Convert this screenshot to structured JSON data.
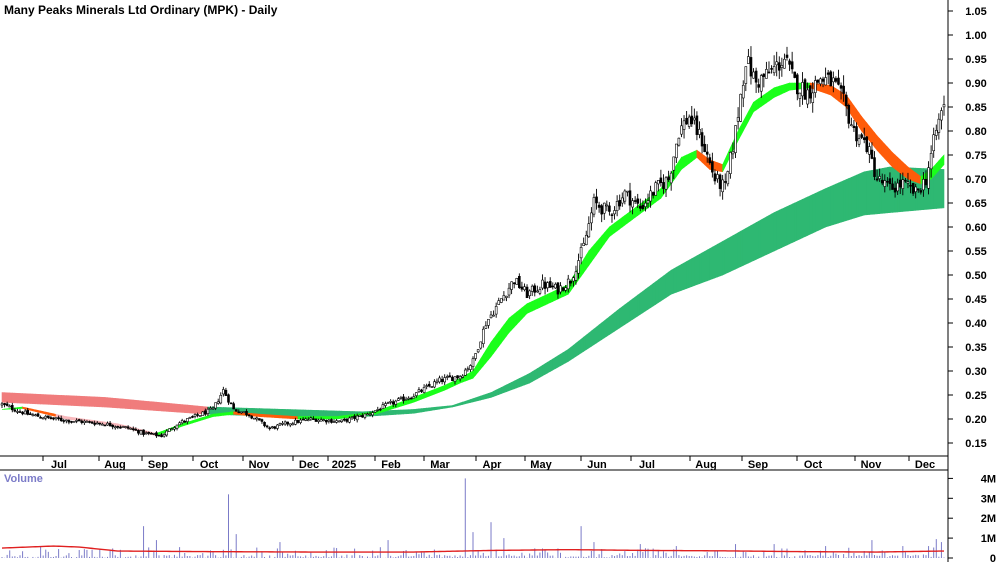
{
  "chart_data": [
    {
      "type": "candlestick",
      "title": "Many Peaks Minerals Ltd Ordinary (MPK) - Daily",
      "ylabel": "",
      "y_ticks": [
        "0.15",
        "0.20",
        "0.25",
        "0.30",
        "0.35",
        "0.40",
        "0.45",
        "0.50",
        "0.55",
        "0.60",
        "0.65",
        "0.70",
        "0.75",
        "0.80",
        "0.85",
        "0.90",
        "0.95",
        "1.00",
        "1.05"
      ],
      "ylim": [
        0.1,
        1.08
      ],
      "x_labels": [
        "Jul",
        "Aug",
        "Sep",
        "Oct",
        "Nov",
        "Dec",
        "2025",
        "Feb",
        "Mar",
        "Apr",
        "May",
        "Jun",
        "Jul",
        "Aug",
        "Sep",
        "Oct",
        "Nov",
        "Dec"
      ],
      "legend": "none",
      "grid": false,
      "colors": {
        "candle": "#000000",
        "short_band_up": "#1aff1a",
        "short_band_down": "#ff5c0a",
        "long_band_up": "#2eb872",
        "long_band_down": "#f07c7c",
        "long_band_down_light": "#f8b8bc",
        "axis": "#000000",
        "volume_bar": "#7b7bc8",
        "volume_avg": "#e02020"
      },
      "close_anchors": [
        [
          0,
          0.23
        ],
        [
          10,
          0.21
        ],
        [
          20,
          0.2
        ],
        [
          30,
          0.195
        ],
        [
          40,
          0.19
        ],
        [
          50,
          0.18
        ],
        [
          55,
          0.17
        ],
        [
          62,
          0.165
        ],
        [
          68,
          0.19
        ],
        [
          75,
          0.205
        ],
        [
          82,
          0.22
        ],
        [
          86,
          0.26
        ],
        [
          90,
          0.22
        ],
        [
          96,
          0.21
        ],
        [
          104,
          0.18
        ],
        [
          110,
          0.19
        ],
        [
          120,
          0.2
        ],
        [
          132,
          0.195
        ],
        [
          142,
          0.21
        ],
        [
          150,
          0.23
        ],
        [
          160,
          0.25
        ],
        [
          170,
          0.28
        ],
        [
          178,
          0.29
        ],
        [
          183,
          0.32
        ],
        [
          188,
          0.4
        ],
        [
          194,
          0.45
        ],
        [
          199,
          0.49
        ],
        [
          204,
          0.46
        ],
        [
          210,
          0.48
        ],
        [
          216,
          0.47
        ],
        [
          221,
          0.49
        ],
        [
          226,
          0.56
        ],
        [
          230,
          0.65
        ],
        [
          236,
          0.63
        ],
        [
          242,
          0.67
        ],
        [
          248,
          0.64
        ],
        [
          254,
          0.68
        ],
        [
          259,
          0.7
        ],
        [
          263,
          0.8
        ],
        [
          267,
          0.83
        ],
        [
          272,
          0.78
        ],
        [
          277,
          0.7
        ],
        [
          281,
          0.68
        ],
        [
          285,
          0.8
        ],
        [
          289,
          0.95
        ],
        [
          293,
          0.9
        ],
        [
          298,
          0.92
        ],
        [
          304,
          0.95
        ],
        [
          308,
          0.9
        ],
        [
          313,
          0.88
        ],
        [
          318,
          0.91
        ],
        [
          323,
          0.9
        ],
        [
          327,
          0.86
        ],
        [
          331,
          0.8
        ],
        [
          336,
          0.77
        ],
        [
          340,
          0.7
        ],
        [
          345,
          0.68
        ],
        [
          350,
          0.69
        ],
        [
          355,
          0.67
        ],
        [
          359,
          0.7
        ],
        [
          363,
          0.8
        ],
        [
          366,
          0.86
        ]
      ],
      "short_band_anchors": [
        [
          0,
          0.22,
          0.22
        ],
        [
          8,
          0.225,
          0.222
        ],
        [
          25,
          0.205,
          0.2
        ],
        [
          45,
          0.19,
          0.185
        ],
        [
          60,
          0.17,
          0.165
        ],
        [
          70,
          0.19,
          0.185
        ],
        [
          82,
          0.21,
          0.205
        ],
        [
          90,
          0.215,
          0.21
        ],
        [
          100,
          0.21,
          0.205
        ],
        [
          115,
          0.205,
          0.2
        ],
        [
          130,
          0.205,
          0.2
        ],
        [
          145,
          0.215,
          0.21
        ],
        [
          160,
          0.245,
          0.235
        ],
        [
          172,
          0.27,
          0.26
        ],
        [
          178,
          0.285,
          0.275
        ],
        [
          183,
          0.3,
          0.285
        ],
        [
          190,
          0.36,
          0.33
        ],
        [
          197,
          0.41,
          0.38
        ],
        [
          204,
          0.44,
          0.42
        ],
        [
          212,
          0.46,
          0.44
        ],
        [
          220,
          0.48,
          0.46
        ],
        [
          228,
          0.55,
          0.52
        ],
        [
          236,
          0.6,
          0.58
        ],
        [
          246,
          0.64,
          0.62
        ],
        [
          256,
          0.68,
          0.66
        ],
        [
          264,
          0.745,
          0.72
        ],
        [
          270,
          0.76,
          0.745
        ],
        [
          275,
          0.74,
          0.72
        ],
        [
          280,
          0.73,
          0.715
        ],
        [
          286,
          0.8,
          0.78
        ],
        [
          292,
          0.86,
          0.84
        ],
        [
          300,
          0.89,
          0.87
        ],
        [
          306,
          0.9,
          0.885
        ],
        [
          314,
          0.9,
          0.89
        ],
        [
          322,
          0.895,
          0.875
        ],
        [
          328,
          0.875,
          0.85
        ],
        [
          334,
          0.83,
          0.8
        ],
        [
          340,
          0.79,
          0.76
        ],
        [
          346,
          0.755,
          0.725
        ],
        [
          352,
          0.725,
          0.7
        ],
        [
          357,
          0.705,
          0.69
        ],
        [
          361,
          0.72,
          0.7
        ],
        [
          366,
          0.75,
          0.73
        ]
      ],
      "long_band_anchors": [
        [
          0,
          0.255,
          0.235
        ],
        [
          40,
          0.245,
          0.225
        ],
        [
          80,
          0.225,
          0.21
        ],
        [
          110,
          0.22,
          0.205
        ],
        [
          140,
          0.215,
          0.205
        ],
        [
          160,
          0.22,
          0.212
        ],
        [
          175,
          0.228,
          0.225
        ],
        [
          190,
          0.255,
          0.245
        ],
        [
          205,
          0.295,
          0.275
        ],
        [
          220,
          0.345,
          0.32
        ],
        [
          240,
          0.43,
          0.39
        ],
        [
          260,
          0.51,
          0.46
        ],
        [
          280,
          0.57,
          0.5
        ],
        [
          300,
          0.63,
          0.55
        ],
        [
          320,
          0.68,
          0.6
        ],
        [
          335,
          0.715,
          0.625
        ],
        [
          345,
          0.725,
          0.63
        ],
        [
          366,
          0.72,
          0.64
        ]
      ],
      "volume": {
        "title": "Volume",
        "y_ticks": [
          "0",
          "1M",
          "2M",
          "3M",
          "4M"
        ],
        "ylim": [
          0,
          4.2
        ],
        "average_anchors": [
          [
            0,
            0.5
          ],
          [
            20,
            0.6
          ],
          [
            30,
            0.55
          ],
          [
            45,
            0.35
          ],
          [
            80,
            0.32
          ],
          [
            120,
            0.3
          ],
          [
            160,
            0.3
          ],
          [
            190,
            0.38
          ],
          [
            220,
            0.42
          ],
          [
            250,
            0.38
          ],
          [
            280,
            0.36
          ],
          [
            310,
            0.32
          ],
          [
            340,
            0.3
          ],
          [
            366,
            0.35
          ]
        ],
        "spikes": [
          [
            15,
            0.6
          ],
          [
            30,
            0.4
          ],
          [
            55,
            1.6
          ],
          [
            60,
            0.9
          ],
          [
            88,
            3.2
          ],
          [
            91,
            1.2
          ],
          [
            108,
            0.8
          ],
          [
            130,
            0.5
          ],
          [
            150,
            0.9
          ],
          [
            180,
            4.0
          ],
          [
            183,
            1.3
          ],
          [
            190,
            1.8
          ],
          [
            195,
            1.0
          ],
          [
            225,
            1.6
          ],
          [
            230,
            0.8
          ],
          [
            248,
            0.7
          ],
          [
            262,
            0.6
          ],
          [
            285,
            0.7
          ],
          [
            300,
            0.7
          ],
          [
            320,
            0.6
          ],
          [
            338,
            0.9
          ],
          [
            350,
            0.6
          ],
          [
            360,
            0.6
          ],
          [
            363,
            0.95
          ],
          [
            365,
            0.8
          ]
        ]
      }
    }
  ]
}
